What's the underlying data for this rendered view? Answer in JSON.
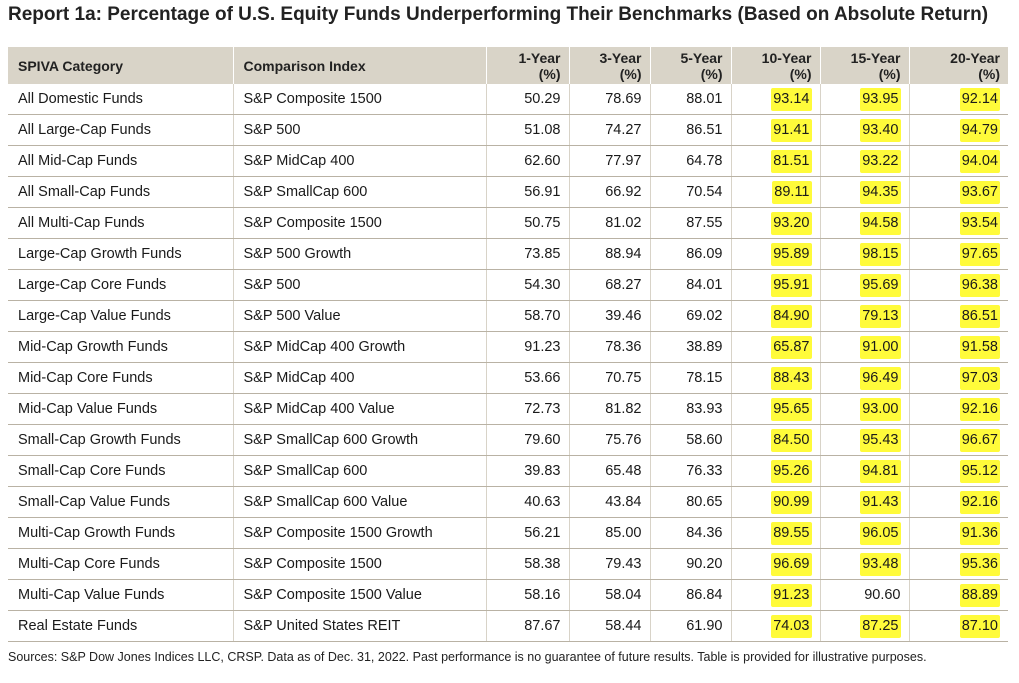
{
  "title": "Report 1a: Percentage of U.S. Equity Funds Underperforming Their Benchmarks (Based on Absolute Return)",
  "headers": {
    "category": "SPIVA Category",
    "index": "Comparison Index",
    "y1": [
      "1-Year",
      "(%)"
    ],
    "y3": [
      "3-Year",
      "(%)"
    ],
    "y5": [
      "5-Year",
      "(%)"
    ],
    "y10": [
      "10-Year",
      "(%)"
    ],
    "y15": [
      "15-Year",
      "(%)"
    ],
    "y20": [
      "20-Year",
      "(%)"
    ]
  },
  "highlight_color": "#fffb3a",
  "chart_data": {
    "type": "table",
    "columns": [
      "SPIVA Category",
      "Comparison Index",
      "1-Year (%)",
      "3-Year (%)",
      "5-Year (%)",
      "10-Year (%)",
      "15-Year (%)",
      "20-Year (%)"
    ],
    "highlighted_columns": [
      "10-Year (%)",
      "15-Year (%)",
      "20-Year (%)"
    ],
    "rows": [
      [
        "All Domestic Funds",
        "S&P Composite 1500",
        "50.29",
        "78.69",
        "88.01",
        "93.14",
        "93.95",
        "92.14"
      ],
      [
        "All Large-Cap Funds",
        "S&P 500",
        "51.08",
        "74.27",
        "86.51",
        "91.41",
        "93.40",
        "94.79"
      ],
      [
        "All Mid-Cap Funds",
        "S&P MidCap 400",
        "62.60",
        "77.97",
        "64.78",
        "81.51",
        "93.22",
        "94.04"
      ],
      [
        "All Small-Cap Funds",
        "S&P SmallCap 600",
        "56.91",
        "66.92",
        "70.54",
        "89.11",
        "94.35",
        "93.67"
      ],
      [
        "All Multi-Cap Funds",
        "S&P Composite 1500",
        "50.75",
        "81.02",
        "87.55",
        "93.20",
        "94.58",
        "93.54"
      ],
      [
        "Large-Cap Growth Funds",
        "S&P 500 Growth",
        "73.85",
        "88.94",
        "86.09",
        "95.89",
        "98.15",
        "97.65"
      ],
      [
        "Large-Cap Core Funds",
        "S&P 500",
        "54.30",
        "68.27",
        "84.01",
        "95.91",
        "95.69",
        "96.38"
      ],
      [
        "Large-Cap Value Funds",
        "S&P 500 Value",
        "58.70",
        "39.46",
        "69.02",
        "84.90",
        "79.13",
        "86.51"
      ],
      [
        "Mid-Cap Growth Funds",
        "S&P MidCap 400 Growth",
        "91.23",
        "78.36",
        "38.89",
        "65.87",
        "91.00",
        "91.58"
      ],
      [
        "Mid-Cap Core Funds",
        "S&P MidCap 400",
        "53.66",
        "70.75",
        "78.15",
        "88.43",
        "96.49",
        "97.03"
      ],
      [
        "Mid-Cap Value Funds",
        "S&P MidCap 400 Value",
        "72.73",
        "81.82",
        "83.93",
        "95.65",
        "93.00",
        "92.16"
      ],
      [
        "Small-Cap Growth Funds",
        "S&P SmallCap 600 Growth",
        "79.60",
        "75.76",
        "58.60",
        "84.50",
        "95.43",
        "96.67"
      ],
      [
        "Small-Cap Core Funds",
        "S&P SmallCap 600",
        "39.83",
        "65.48",
        "76.33",
        "95.26",
        "94.81",
        "95.12"
      ],
      [
        "Small-Cap Value Funds",
        "S&P SmallCap 600 Value",
        "40.63",
        "43.84",
        "80.65",
        "90.99",
        "91.43",
        "92.16"
      ],
      [
        "Multi-Cap Growth Funds",
        "S&P Composite 1500 Growth",
        "56.21",
        "85.00",
        "84.36",
        "89.55",
        "96.05",
        "91.36"
      ],
      [
        "Multi-Cap Core Funds",
        "S&P Composite 1500",
        "58.38",
        "79.43",
        "90.20",
        "96.69",
        "93.48",
        "95.36"
      ],
      [
        "Multi-Cap Value Funds",
        "S&P Composite 1500 Value",
        "58.16",
        "58.04",
        "86.84",
        "91.23",
        "90.60",
        "88.89"
      ],
      [
        "Real Estate Funds",
        "S&P United States REIT",
        "87.67",
        "58.44",
        "61.90",
        "74.03",
        "87.25",
        "87.10"
      ]
    ]
  },
  "footer": "Sources: S&P Dow Jones Indices LLC, CRSP.  Data as of Dec. 31, 2022.  Past performance is no guarantee of future results.  Table is provided for illustrative purposes."
}
